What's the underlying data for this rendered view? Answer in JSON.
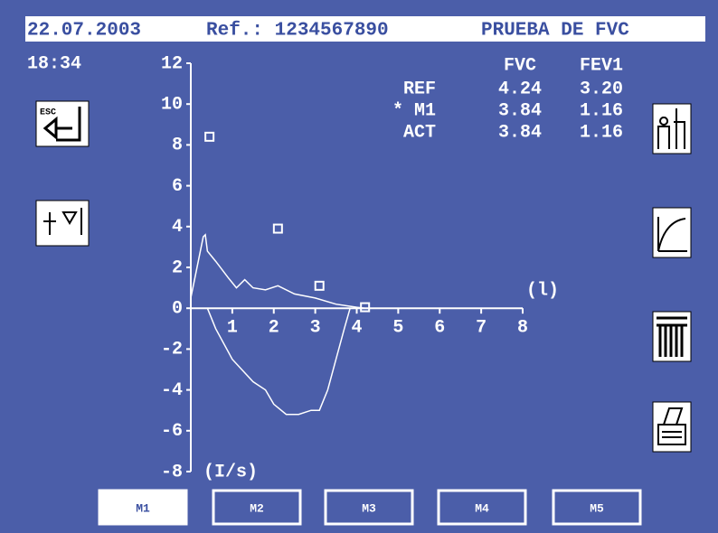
{
  "header": {
    "date": "22.07.2003",
    "ref": "Ref.: 1234567890",
    "title": "PRUEBA DE FVC"
  },
  "time": "18:34",
  "table": {
    "header": [
      "FVC",
      "FEV1"
    ],
    "rows": [
      [
        "REF",
        "4.24",
        "3.20"
      ],
      [
        "* M1",
        "3.84",
        "1.16"
      ],
      [
        "ACT",
        "3.84",
        "1.16"
      ]
    ]
  },
  "icons": {
    "esc": "ESC"
  },
  "buttons": [
    "M1",
    "M2",
    "M3",
    "M4",
    "M5"
  ],
  "chart_data": {
    "type": "line",
    "xlabel": "(l)",
    "ylabel": "(I/s)",
    "xlim": [
      0,
      8
    ],
    "xticks": [
      1,
      2,
      3,
      4,
      5,
      6,
      7,
      8
    ],
    "ylim": [
      -8,
      12
    ],
    "yticks": [
      -8,
      -6,
      -4,
      -2,
      0,
      2,
      4,
      6,
      8,
      10,
      12
    ],
    "series": [
      {
        "type": "line",
        "color": "#ffffff",
        "x": [
          0,
          0.1,
          0.2,
          0.3,
          0.35,
          0.4,
          0.6,
          0.9,
          1.1,
          1.3,
          1.5,
          1.8,
          2.1,
          2.5,
          3.0,
          3.5,
          4.0,
          4.2
        ],
        "values": [
          0.5,
          1.5,
          2.5,
          3.5,
          3.6,
          2.8,
          2.3,
          1.5,
          1.0,
          1.4,
          1.0,
          0.9,
          1.1,
          0.7,
          0.5,
          0.2,
          0.05,
          0
        ]
      },
      {
        "type": "line",
        "color": "#ffffff",
        "x": [
          3.84,
          3.7,
          3.5,
          3.3,
          3.1,
          2.9,
          2.6,
          2.3,
          2.0,
          1.8,
          1.5,
          1.0,
          0.6,
          0.4
        ],
        "values": [
          0,
          -1,
          -2.5,
          -4.0,
          -5.0,
          -5.0,
          -5.2,
          -5.2,
          -4.7,
          -4.0,
          -3.6,
          -2.5,
          -1.0,
          0
        ]
      },
      {
        "type": "scatter",
        "color": "#ffffff",
        "x": [
          0.45,
          2.1,
          3.1,
          4.2
        ],
        "values": [
          8.4,
          3.9,
          1.1,
          0.05
        ]
      }
    ]
  }
}
